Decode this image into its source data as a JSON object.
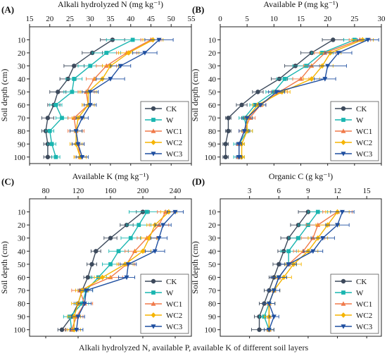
{
  "caption": "Alkali hydrolyzed N, available P, available K of different soil layers",
  "series_styles": [
    {
      "name": "CK",
      "color": "#3d4a5c",
      "marker": "circle"
    },
    {
      "name": "W",
      "color": "#19b5b0",
      "marker": "square"
    },
    {
      "name": "WC1",
      "color": "#f07a4a",
      "marker": "triangle-up"
    },
    {
      "name": "WC2",
      "color": "#f5b400",
      "marker": "diamond"
    },
    {
      "name": "WC3",
      "color": "#1f4fa0",
      "marker": "triangle-down"
    }
  ],
  "chart_data": [
    {
      "panel": "(A)",
      "type": "line",
      "title": "Alkali hydrolyzed N (mg kg⁻¹)",
      "xlabel": "Alkali hydrolyzed N (mg kg⁻¹)",
      "ylabel": "Soil depth (cm)",
      "xlim": [
        15,
        55
      ],
      "xticks": [
        15,
        20,
        25,
        30,
        35,
        40,
        45,
        50,
        55
      ],
      "ylim": [
        0,
        105
      ],
      "yticks": [
        10,
        20,
        30,
        40,
        50,
        60,
        70,
        80,
        90,
        100
      ],
      "x_axis_position": "top",
      "y_inverted": true,
      "legend": "bottom-right",
      "grid": false,
      "depth": [
        10,
        20,
        30,
        40,
        50,
        60,
        70,
        80,
        90,
        100
      ],
      "series": [
        {
          "name": "CK",
          "values": [
            35.5,
            30.5,
            26.0,
            24.5,
            22.0,
            21.0,
            19.5,
            19.0,
            19.5,
            19.5
          ],
          "err": [
            3.0,
            2.5,
            2.5,
            2.0,
            2.0,
            1.5,
            1.5,
            1.0,
            1.0,
            1.0
          ]
        },
        {
          "name": "W",
          "values": [
            40.5,
            34.0,
            30.0,
            26.0,
            25.5,
            21.5,
            23.0,
            20.0,
            20.5,
            21.5
          ],
          "err": [
            6.5,
            3.5,
            3.0,
            2.0,
            2.0,
            1.5,
            1.5,
            1.0,
            1.0,
            1.0
          ]
        },
        {
          "name": "WC1",
          "values": [
            45.0,
            39.0,
            34.0,
            31.0,
            29.0,
            29.5,
            26.0,
            26.5,
            27.0,
            27.5
          ],
          "err": [
            2.5,
            2.5,
            2.5,
            2.0,
            2.0,
            1.5,
            1.5,
            2.0,
            1.5,
            1.5
          ]
        },
        {
          "name": "WC2",
          "values": [
            45.5,
            39.5,
            35.0,
            33.0,
            29.5,
            29.5,
            27.0,
            26.5,
            26.5,
            27.5
          ],
          "err": [
            2.5,
            2.5,
            2.0,
            2.0,
            2.0,
            1.5,
            1.5,
            1.5,
            1.5,
            1.5
          ]
        },
        {
          "name": "WC3",
          "values": [
            47.0,
            43.5,
            37.5,
            35.0,
            30.0,
            30.0,
            28.0,
            26.5,
            27.0,
            28.0
          ],
          "err": [
            3.5,
            3.0,
            2.5,
            3.5,
            2.0,
            1.5,
            1.5,
            1.5,
            1.5,
            1.5
          ]
        }
      ]
    },
    {
      "panel": "(B)",
      "type": "line",
      "title": "Available P (mg kg⁻¹)",
      "xlabel": "Available P (mg kg⁻¹)",
      "ylabel": "Soil depth (cm)",
      "xlim": [
        0,
        30
      ],
      "xticks": [
        0,
        5,
        10,
        15,
        20,
        25,
        30
      ],
      "ylim": [
        0,
        105
      ],
      "yticks": [
        10,
        20,
        30,
        40,
        50,
        60,
        70,
        80,
        90,
        100
      ],
      "x_axis_position": "top",
      "y_inverted": true,
      "legend": "bottom-right",
      "grid": false,
      "depth": [
        10,
        20,
        30,
        40,
        50,
        60,
        70,
        80,
        90,
        100
      ],
      "series": [
        {
          "name": "CK",
          "values": [
            21.0,
            17.0,
            14.0,
            11.0,
            7.0,
            4.0,
            1.5,
            1.5,
            1.0,
            1.0
          ],
          "err": [
            2.0,
            2.0,
            2.0,
            1.5,
            1.0,
            1.0,
            0.5,
            0.5,
            0.5,
            0.5
          ]
        },
        {
          "name": "W",
          "values": [
            25.0,
            19.0,
            16.0,
            12.0,
            10.0,
            6.5,
            4.5,
            5.0,
            3.5,
            3.5
          ],
          "err": [
            2.0,
            2.0,
            2.5,
            1.5,
            1.5,
            1.0,
            1.0,
            1.0,
            1.0,
            1.0
          ]
        },
        {
          "name": "WC1",
          "values": [
            26.0,
            19.5,
            17.0,
            15.0,
            11.0,
            7.5,
            5.5,
            4.5,
            3.5,
            3.5
          ],
          "err": [
            2.0,
            2.0,
            1.5,
            1.5,
            1.5,
            1.0,
            1.0,
            1.0,
            0.5,
            0.5
          ]
        },
        {
          "name": "WC2",
          "values": [
            26.5,
            20.5,
            19.0,
            17.0,
            11.5,
            7.0,
            5.0,
            5.0,
            4.0,
            4.0
          ],
          "err": [
            2.0,
            2.0,
            2.0,
            1.5,
            1.5,
            1.0,
            1.0,
            1.0,
            0.5,
            0.5
          ]
        },
        {
          "name": "WC3",
          "values": [
            27.5,
            22.0,
            20.0,
            19.5,
            10.5,
            7.5,
            5.0,
            4.5,
            3.5,
            3.5
          ],
          "err": [
            2.0,
            2.5,
            3.5,
            2.0,
            1.5,
            1.0,
            1.0,
            1.0,
            0.5,
            0.5
          ]
        }
      ]
    },
    {
      "panel": "(C)",
      "type": "line",
      "title": "Available K (mg kg⁻¹)",
      "xlabel": "Available K (mg kg⁻¹)",
      "ylabel": "Soil depth (cm)",
      "xlim": [
        60,
        260
      ],
      "xticks": [
        80,
        120,
        160,
        200,
        240
      ],
      "ylim": [
        0,
        105
      ],
      "yticks": [
        10,
        20,
        30,
        40,
        50,
        60,
        70,
        80,
        90,
        100
      ],
      "x_axis_position": "top",
      "y_inverted": true,
      "legend": "bottom-right",
      "grid": false,
      "depth": [
        10,
        20,
        30,
        40,
        50,
        60,
        70,
        80,
        90,
        100
      ],
      "series": [
        {
          "name": "CK",
          "values": [
            200,
            180,
            160,
            142,
            137,
            132,
            125,
            120,
            112,
            100
          ],
          "err": [
            8,
            8,
            8,
            6,
            6,
            5,
            5,
            5,
            5,
            5
          ]
        },
        {
          "name": "W",
          "values": [
            205,
            195,
            185,
            170,
            160,
            145,
            130,
            125,
            110,
            112
          ],
          "err": [
            22,
            15,
            12,
            12,
            10,
            10,
            8,
            8,
            8,
            8
          ]
        },
        {
          "name": "WC1",
          "values": [
            228,
            220,
            205,
            190,
            180,
            160,
            122,
            128,
            118,
            112
          ],
          "err": [
            10,
            12,
            12,
            12,
            10,
            15,
            10,
            10,
            8,
            8
          ]
        },
        {
          "name": "WC2",
          "values": [
            232,
            215,
            208,
            200,
            178,
            150,
            125,
            120,
            115,
            115
          ],
          "err": [
            10,
            10,
            10,
            10,
            10,
            10,
            8,
            8,
            8,
            8
          ]
        },
        {
          "name": "WC3",
          "values": [
            240,
            225,
            220,
            215,
            182,
            180,
            130,
            128,
            120,
            118
          ],
          "err": [
            10,
            10,
            10,
            12,
            10,
            10,
            8,
            8,
            8,
            8
          ]
        }
      ]
    },
    {
      "panel": "(D)",
      "type": "line",
      "title": "Organic C (g kg⁻¹)",
      "xlabel": "Organic C (g kg⁻¹)",
      "ylabel": "Soil depth (cm)",
      "xlim": [
        0,
        16.5
      ],
      "xticks": [
        3,
        6,
        9,
        12,
        15
      ],
      "ylim": [
        0,
        105
      ],
      "yticks": [
        10,
        20,
        30,
        40,
        50,
        60,
        70,
        80,
        90,
        100
      ],
      "x_axis_position": "top",
      "y_inverted": true,
      "legend": "bottom-right",
      "grid": false,
      "depth": [
        10,
        20,
        30,
        40,
        50,
        60,
        70,
        80,
        90,
        100
      ],
      "series": [
        {
          "name": "CK",
          "values": [
            9.0,
            8.0,
            7.0,
            6.5,
            6.0,
            5.5,
            5.0,
            4.5,
            4.0,
            4.0
          ],
          "err": [
            1.0,
            0.8,
            0.8,
            0.6,
            0.6,
            0.5,
            0.5,
            0.5,
            0.5,
            0.8
          ]
        },
        {
          "name": "W",
          "values": [
            10.0,
            9.0,
            8.0,
            7.0,
            7.0,
            6.0,
            5.5,
            5.0,
            4.5,
            5.0
          ],
          "err": [
            1.0,
            1.0,
            1.0,
            0.8,
            0.8,
            0.8,
            0.6,
            0.6,
            0.5,
            0.5
          ]
        },
        {
          "name": "WC1",
          "values": [
            12.0,
            10.0,
            9.5,
            8.5,
            7.0,
            6.0,
            5.5,
            5.0,
            5.0,
            5.0
          ],
          "err": [
            1.5,
            1.2,
            1.2,
            1.0,
            0.8,
            0.8,
            0.6,
            0.6,
            0.5,
            0.5
          ]
        },
        {
          "name": "WC2",
          "values": [
            12.0,
            11.0,
            10.0,
            9.0,
            7.5,
            6.5,
            5.5,
            5.0,
            5.0,
            5.0
          ],
          "err": [
            1.2,
            1.2,
            1.0,
            1.0,
            0.8,
            0.8,
            0.6,
            0.6,
            0.5,
            0.5
          ]
        },
        {
          "name": "WC3",
          "values": [
            12.5,
            12.0,
            10.5,
            9.5,
            7.0,
            6.0,
            5.5,
            5.0,
            5.5,
            5.0
          ],
          "err": [
            1.2,
            1.2,
            1.2,
            1.0,
            0.8,
            0.8,
            0.6,
            0.6,
            0.5,
            0.5
          ]
        }
      ]
    }
  ]
}
